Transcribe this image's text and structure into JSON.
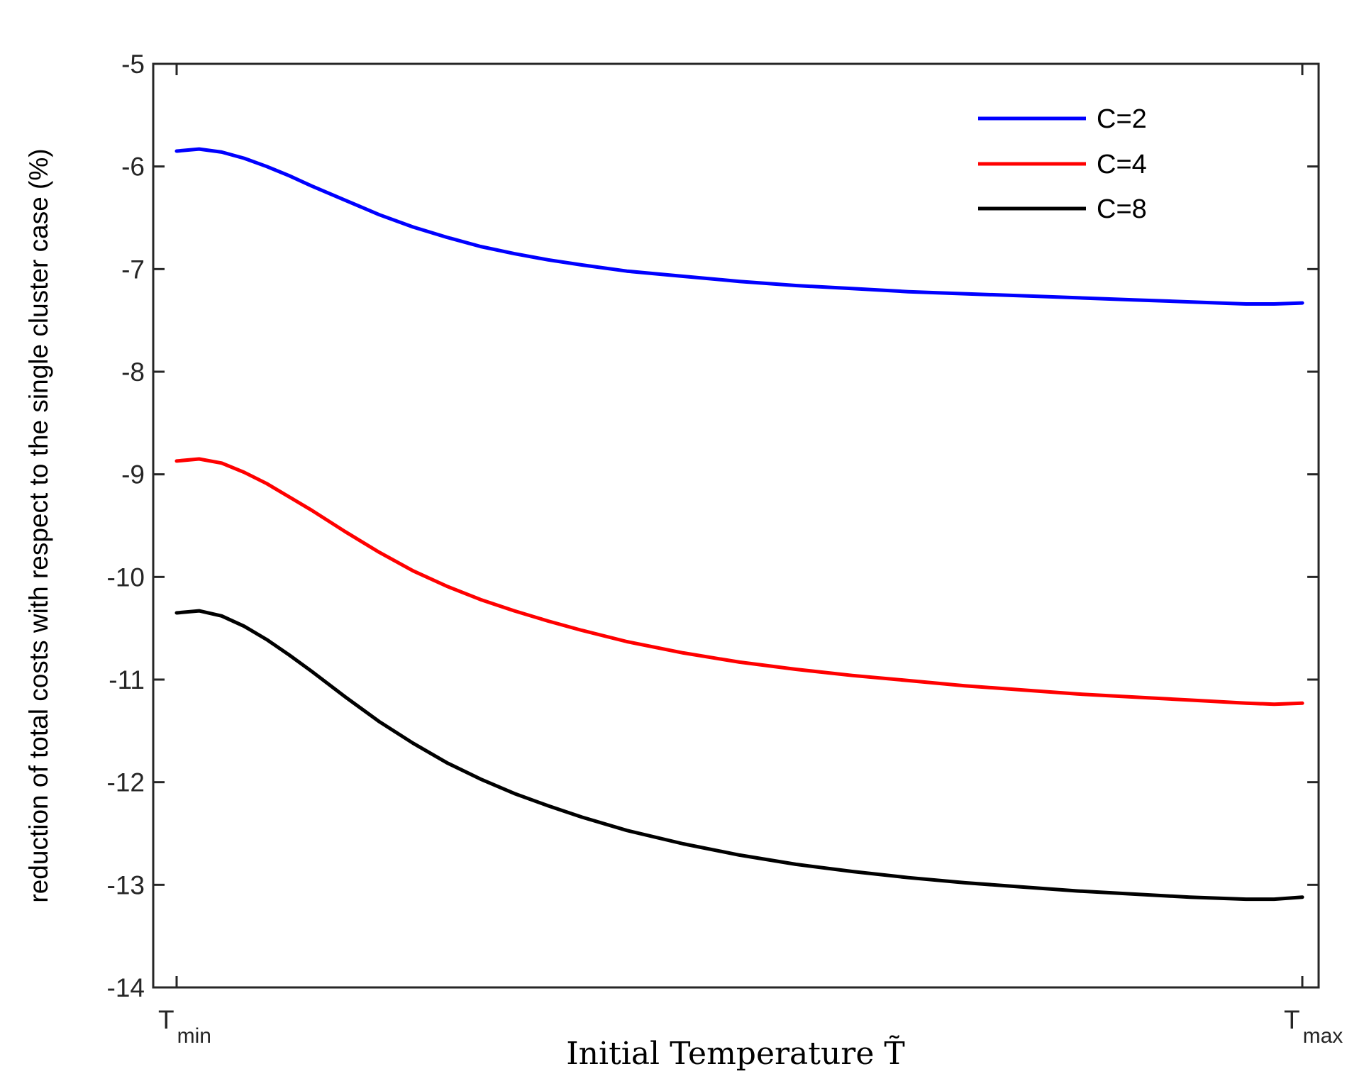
{
  "chart_data": {
    "type": "line",
    "title": "",
    "xlabel": "Initial Temperature T̃",
    "ylabel": "reduction of total costs with respect to the single cluster case (%)",
    "ylim": [
      -14,
      -5
    ],
    "yticks": [
      -5,
      -6,
      -7,
      -8,
      -9,
      -10,
      -11,
      -12,
      -13,
      -14
    ],
    "xlim": [
      0,
      1
    ],
    "xticks": [
      {
        "main": "T",
        "sub": "min",
        "value": 0
      },
      {
        "main": "T",
        "sub": "max",
        "value": 1
      }
    ],
    "grid": false,
    "legend": "top-right",
    "x": [
      0,
      0.02,
      0.04,
      0.06,
      0.08,
      0.1,
      0.12,
      0.15,
      0.18,
      0.21,
      0.24,
      0.27,
      0.3,
      0.33,
      0.36,
      0.4,
      0.45,
      0.5,
      0.55,
      0.6,
      0.65,
      0.7,
      0.75,
      0.8,
      0.85,
      0.9,
      0.95,
      0.975,
      1.0
    ],
    "series": [
      {
        "name": "C=2",
        "color": "#0000ff",
        "values": [
          -5.85,
          -5.83,
          -5.86,
          -5.92,
          -6.0,
          -6.09,
          -6.19,
          -6.33,
          -6.47,
          -6.59,
          -6.69,
          -6.78,
          -6.85,
          -6.91,
          -6.96,
          -7.02,
          -7.07,
          -7.12,
          -7.16,
          -7.19,
          -7.22,
          -7.24,
          -7.26,
          -7.28,
          -7.3,
          -7.32,
          -7.34,
          -7.34,
          -7.33
        ]
      },
      {
        "name": "C=4",
        "color": "#ff0000",
        "values": [
          -8.87,
          -8.85,
          -8.89,
          -8.98,
          -9.09,
          -9.22,
          -9.35,
          -9.56,
          -9.76,
          -9.94,
          -10.09,
          -10.22,
          -10.33,
          -10.43,
          -10.52,
          -10.63,
          -10.74,
          -10.83,
          -10.9,
          -10.96,
          -11.01,
          -11.06,
          -11.1,
          -11.14,
          -11.17,
          -11.2,
          -11.23,
          -11.24,
          -11.23
        ]
      },
      {
        "name": "C=8",
        "color": "#000000",
        "values": [
          -10.35,
          -10.33,
          -10.38,
          -10.48,
          -10.61,
          -10.76,
          -10.92,
          -11.17,
          -11.41,
          -11.62,
          -11.81,
          -11.97,
          -12.11,
          -12.23,
          -12.34,
          -12.47,
          -12.6,
          -12.71,
          -12.8,
          -12.87,
          -12.93,
          -12.98,
          -13.02,
          -13.06,
          -13.09,
          -13.12,
          -13.14,
          -13.14,
          -13.12
        ]
      }
    ]
  }
}
